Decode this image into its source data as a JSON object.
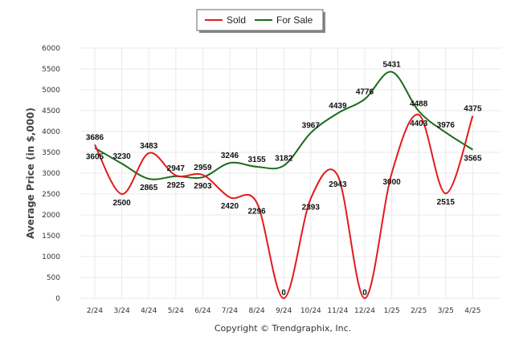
{
  "chart_data": {
    "type": "line",
    "title": "",
    "xlabel": "",
    "ylabel": "Average Price (in $,000)",
    "categories": [
      "2/24",
      "3/24",
      "4/24",
      "5/24",
      "6/24",
      "7/24",
      "8/24",
      "9/24",
      "10/24",
      "11/24",
      "12/24",
      "1/25",
      "2/25",
      "3/25",
      "4/25"
    ],
    "ylim": [
      0,
      6000
    ],
    "yticks": [
      "0",
      "500",
      "1000",
      "1500",
      "2000",
      "2500",
      "3000",
      "3500",
      "4000",
      "4500",
      "5000",
      "5500",
      "6000"
    ],
    "grid": true,
    "legend_position": "top-center",
    "series": [
      {
        "name": "Sold",
        "color": "#e31a1c",
        "values": [
          3686,
          2500,
          3483,
          2947,
          2959,
          2420,
          2296,
          0,
          2393,
          2943,
          0,
          3000,
          4403,
          2515,
          4375
        ],
        "labels": [
          "3686",
          "2500",
          "3483",
          "2947",
          "2959",
          "2420",
          "2296",
          "0",
          "2393",
          "2943",
          "0",
          "3000",
          "4403",
          "2515",
          "4375"
        ]
      },
      {
        "name": "For Sale",
        "color": "#1a6b1a",
        "values": [
          3605,
          3230,
          2865,
          2925,
          2903,
          3246,
          3155,
          3182,
          3967,
          4439,
          4776,
          5431,
          4488,
          3976,
          3565
        ],
        "labels": [
          "3605",
          "3230",
          "2865",
          "2925",
          "2903",
          "3246",
          "3155",
          "3182",
          "3967",
          "4439",
          "4776",
          "5431",
          "4488",
          "3976",
          "3565"
        ]
      }
    ]
  },
  "footer": {
    "copyright": "Copyright © Trendgraphix, Inc."
  }
}
